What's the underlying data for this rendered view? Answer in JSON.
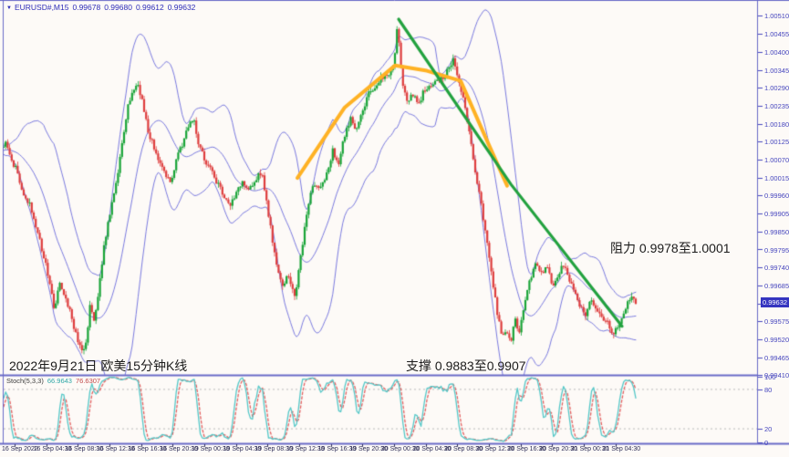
{
  "header": {
    "symbol": "EURUSD#,M15",
    "open": "0.99678",
    "high": "0.99680",
    "low": "0.99612",
    "close": "0.99632"
  },
  "annotations": {
    "resistance": "阻力 0.9978至1.0001",
    "support": "支撑 0.9883至0.9907",
    "caption": "2022年9月21日 欧美15分钟K线"
  },
  "price_axis": {
    "current": "0.99632",
    "labels": [
      "1.00510",
      "1.00455",
      "1.00400",
      "1.00345",
      "1.00290",
      "1.00235",
      "1.00180",
      "1.00125",
      "1.00070",
      "1.00015",
      "0.99960",
      "0.99905",
      "0.99850",
      "0.99795",
      "0.99740",
      "0.99685",
      "0.99630",
      "0.99575",
      "0.99520",
      "0.99465",
      "0.99410"
    ]
  },
  "stoch_panel": {
    "label": "Stoch(5,3,3)",
    "k_value": "66.9643",
    "d_value": "76.6307",
    "axis_labels": [
      "100",
      "80",
      "20",
      "0"
    ],
    "level_lines": [
      80,
      20
    ]
  },
  "time_axis": {
    "labels": [
      "16 Sep 2022",
      "16 Sep 04:30",
      "16 Sep 08:30",
      "16 Sep 12:30",
      "16 Sep 16:30",
      "16 Sep 20:30",
      "19 Sep 00:30",
      "19 Sep 04:30",
      "19 Sep 08:30",
      "19 Sep 12:30",
      "19 Sep 16:30",
      "19 Sep 20:30",
      "20 Sep 00:30",
      "20 Sep 04:30",
      "20 Sep 08:30",
      "20 Sep 12:30",
      "20 Sep 16:30",
      "20 Sep 20:30",
      "21 Sep 00:30",
      "21 Sep 04:30"
    ]
  },
  "colors": {
    "background": "#FDFAF7",
    "frame": "#6A6AC8",
    "axis_text": "#4646BE",
    "candle_up": "#18A437",
    "candle_down": "#DE3D3D",
    "bollinger": "#7B7BE0",
    "trend_orange": "#FFB224",
    "trend_green": "#23A23F",
    "stoch_k": "#55C8C8",
    "stoch_d": "#E36161",
    "level_dotted": "#BBBBBB",
    "price_badge": "#3535C0"
  },
  "chart_data": {
    "type": "candlestick",
    "symbol": "EURUSD#",
    "timeframe": "M15",
    "title": "2022年9月21日 欧美15分钟K线",
    "ohlc_header": {
      "open": 0.99678,
      "high": 0.9968,
      "low": 0.99612,
      "close": 0.99632
    },
    "ylim": [
      0.9941,
      1.0051
    ],
    "y_step": 0.00055,
    "x_time_range": [
      "16 Sep 2022 00:30",
      "21 Sep 2022 06:00"
    ],
    "current_price": 0.99632,
    "resistance_zone": [
      0.9978,
      1.0001
    ],
    "support_zone": [
      0.9883,
      0.9907
    ],
    "indicators": {
      "bollinger": {
        "period": 20,
        "deviation": 2.1
      },
      "stochastic": {
        "params": [
          5,
          3,
          3
        ],
        "k": 66.9643,
        "d": 76.6307,
        "levels": [
          80,
          20
        ],
        "scale": [
          0,
          100
        ]
      }
    },
    "price_path": [
      [
        2,
        1.00098
      ],
      [
        8,
        1.00126
      ],
      [
        14,
        1.0007
      ],
      [
        20,
        1.00042
      ],
      [
        27,
        0.99958
      ],
      [
        35,
        0.99931
      ],
      [
        42,
        0.99861
      ],
      [
        50,
        0.99777
      ],
      [
        57,
        0.99693
      ],
      [
        62,
        0.9961
      ],
      [
        68,
        0.99693
      ],
      [
        74,
        0.99651
      ],
      [
        80,
        0.99596
      ],
      [
        86,
        0.99526
      ],
      [
        92,
        0.99484
      ],
      [
        97,
        0.99512
      ],
      [
        101,
        0.99638
      ],
      [
        106,
        0.99568
      ],
      [
        112,
        0.99721
      ],
      [
        118,
        0.99833
      ],
      [
        124,
        0.99917
      ],
      [
        130,
        1.0
      ],
      [
        136,
        1.00112
      ],
      [
        142,
        1.00224
      ],
      [
        148,
        1.00279
      ],
      [
        153,
        1.00307
      ],
      [
        158,
        1.00251
      ],
      [
        164,
        1.00168
      ],
      [
        170,
        1.00112
      ],
      [
        177,
        1.0007
      ],
      [
        184,
        1.00028
      ],
      [
        190,
        1.0
      ],
      [
        196,
        1.0007
      ],
      [
        203,
        1.00126
      ],
      [
        210,
        1.00182
      ],
      [
        215,
        1.00196
      ],
      [
        219,
        1.00126
      ],
      [
        225,
        1.00084
      ],
      [
        232,
        1.00042
      ],
      [
        240,
        1.0
      ],
      [
        247,
        0.99958
      ],
      [
        254,
        0.9993
      ],
      [
        261,
        0.99972
      ],
      [
        268,
        1.0
      ],
      [
        275,
        0.99972
      ],
      [
        282,
        1.00014
      ],
      [
        290,
        1.00028
      ],
      [
        297,
        0.99889
      ],
      [
        304,
        0.99777
      ],
      [
        311,
        0.99679
      ],
      [
        318,
        0.99721
      ],
      [
        325,
        0.99643
      ],
      [
        332,
        0.99777
      ],
      [
        339,
        0.99917
      ],
      [
        346,
        1.0
      ],
      [
        353,
        0.99972
      ],
      [
        360,
        1.00028
      ],
      [
        367,
        1.00098
      ],
      [
        373,
        1.00056
      ],
      [
        380,
        1.0014
      ],
      [
        387,
        1.00196
      ],
      [
        393,
        1.00154
      ],
      [
        400,
        1.00224
      ],
      [
        407,
        1.00279
      ],
      [
        414,
        1.00293
      ],
      [
        421,
        1.00321
      ],
      [
        428,
        1.00335
      ],
      [
        434,
        1.00363
      ],
      [
        438,
        1.0049
      ],
      [
        443,
        1.00307
      ],
      [
        449,
        1.00251
      ],
      [
        455,
        1.00265
      ],
      [
        461,
        1.00237
      ],
      [
        467,
        1.00279
      ],
      [
        473,
        1.00293
      ],
      [
        480,
        1.00307
      ],
      [
        487,
        1.00321
      ],
      [
        494,
        1.00349
      ],
      [
        500,
        1.00377
      ],
      [
        506,
        1.00307
      ],
      [
        511,
        1.00251
      ],
      [
        517,
        1.0014
      ],
      [
        523,
        1.00042
      ],
      [
        529,
        0.99944
      ],
      [
        535,
        0.99833
      ],
      [
        541,
        0.99721
      ],
      [
        547,
        0.9961
      ],
      [
        552,
        0.99526
      ],
      [
        557,
        0.99554
      ],
      [
        562,
        0.99512
      ],
      [
        567,
        0.99582
      ],
      [
        572,
        0.9954
      ],
      [
        578,
        0.99638
      ],
      [
        584,
        0.99707
      ],
      [
        590,
        0.99749
      ],
      [
        596,
        0.99721
      ],
      [
        602,
        0.99749
      ],
      [
        608,
        0.99679
      ],
      [
        614,
        0.99721
      ],
      [
        620,
        0.99749
      ],
      [
        626,
        0.99707
      ],
      [
        632,
        0.99665
      ],
      [
        638,
        0.99624
      ],
      [
        644,
        0.99596
      ],
      [
        650,
        0.99638
      ],
      [
        656,
        0.9961
      ],
      [
        662,
        0.99582
      ],
      [
        668,
        0.99568
      ],
      [
        674,
        0.9954
      ],
      [
        679,
        0.99554
      ],
      [
        684,
        0.99596
      ],
      [
        689,
        0.99624
      ],
      [
        694,
        0.99655
      ],
      [
        698,
        0.99632
      ]
    ],
    "trendlines": {
      "orange": [
        [
          326,
          1.00014
        ],
        [
          378,
          1.0023
        ],
        [
          433,
          1.00358
        ],
        [
          468,
          1.00342
        ],
        [
          505,
          1.00311
        ],
        [
          532,
          1.0014
        ],
        [
          556,
          0.9999
        ]
      ],
      "green": [
        [
          437,
          1.005
        ],
        [
          560,
          0.99995
        ],
        [
          682,
          0.9956
        ]
      ]
    }
  }
}
